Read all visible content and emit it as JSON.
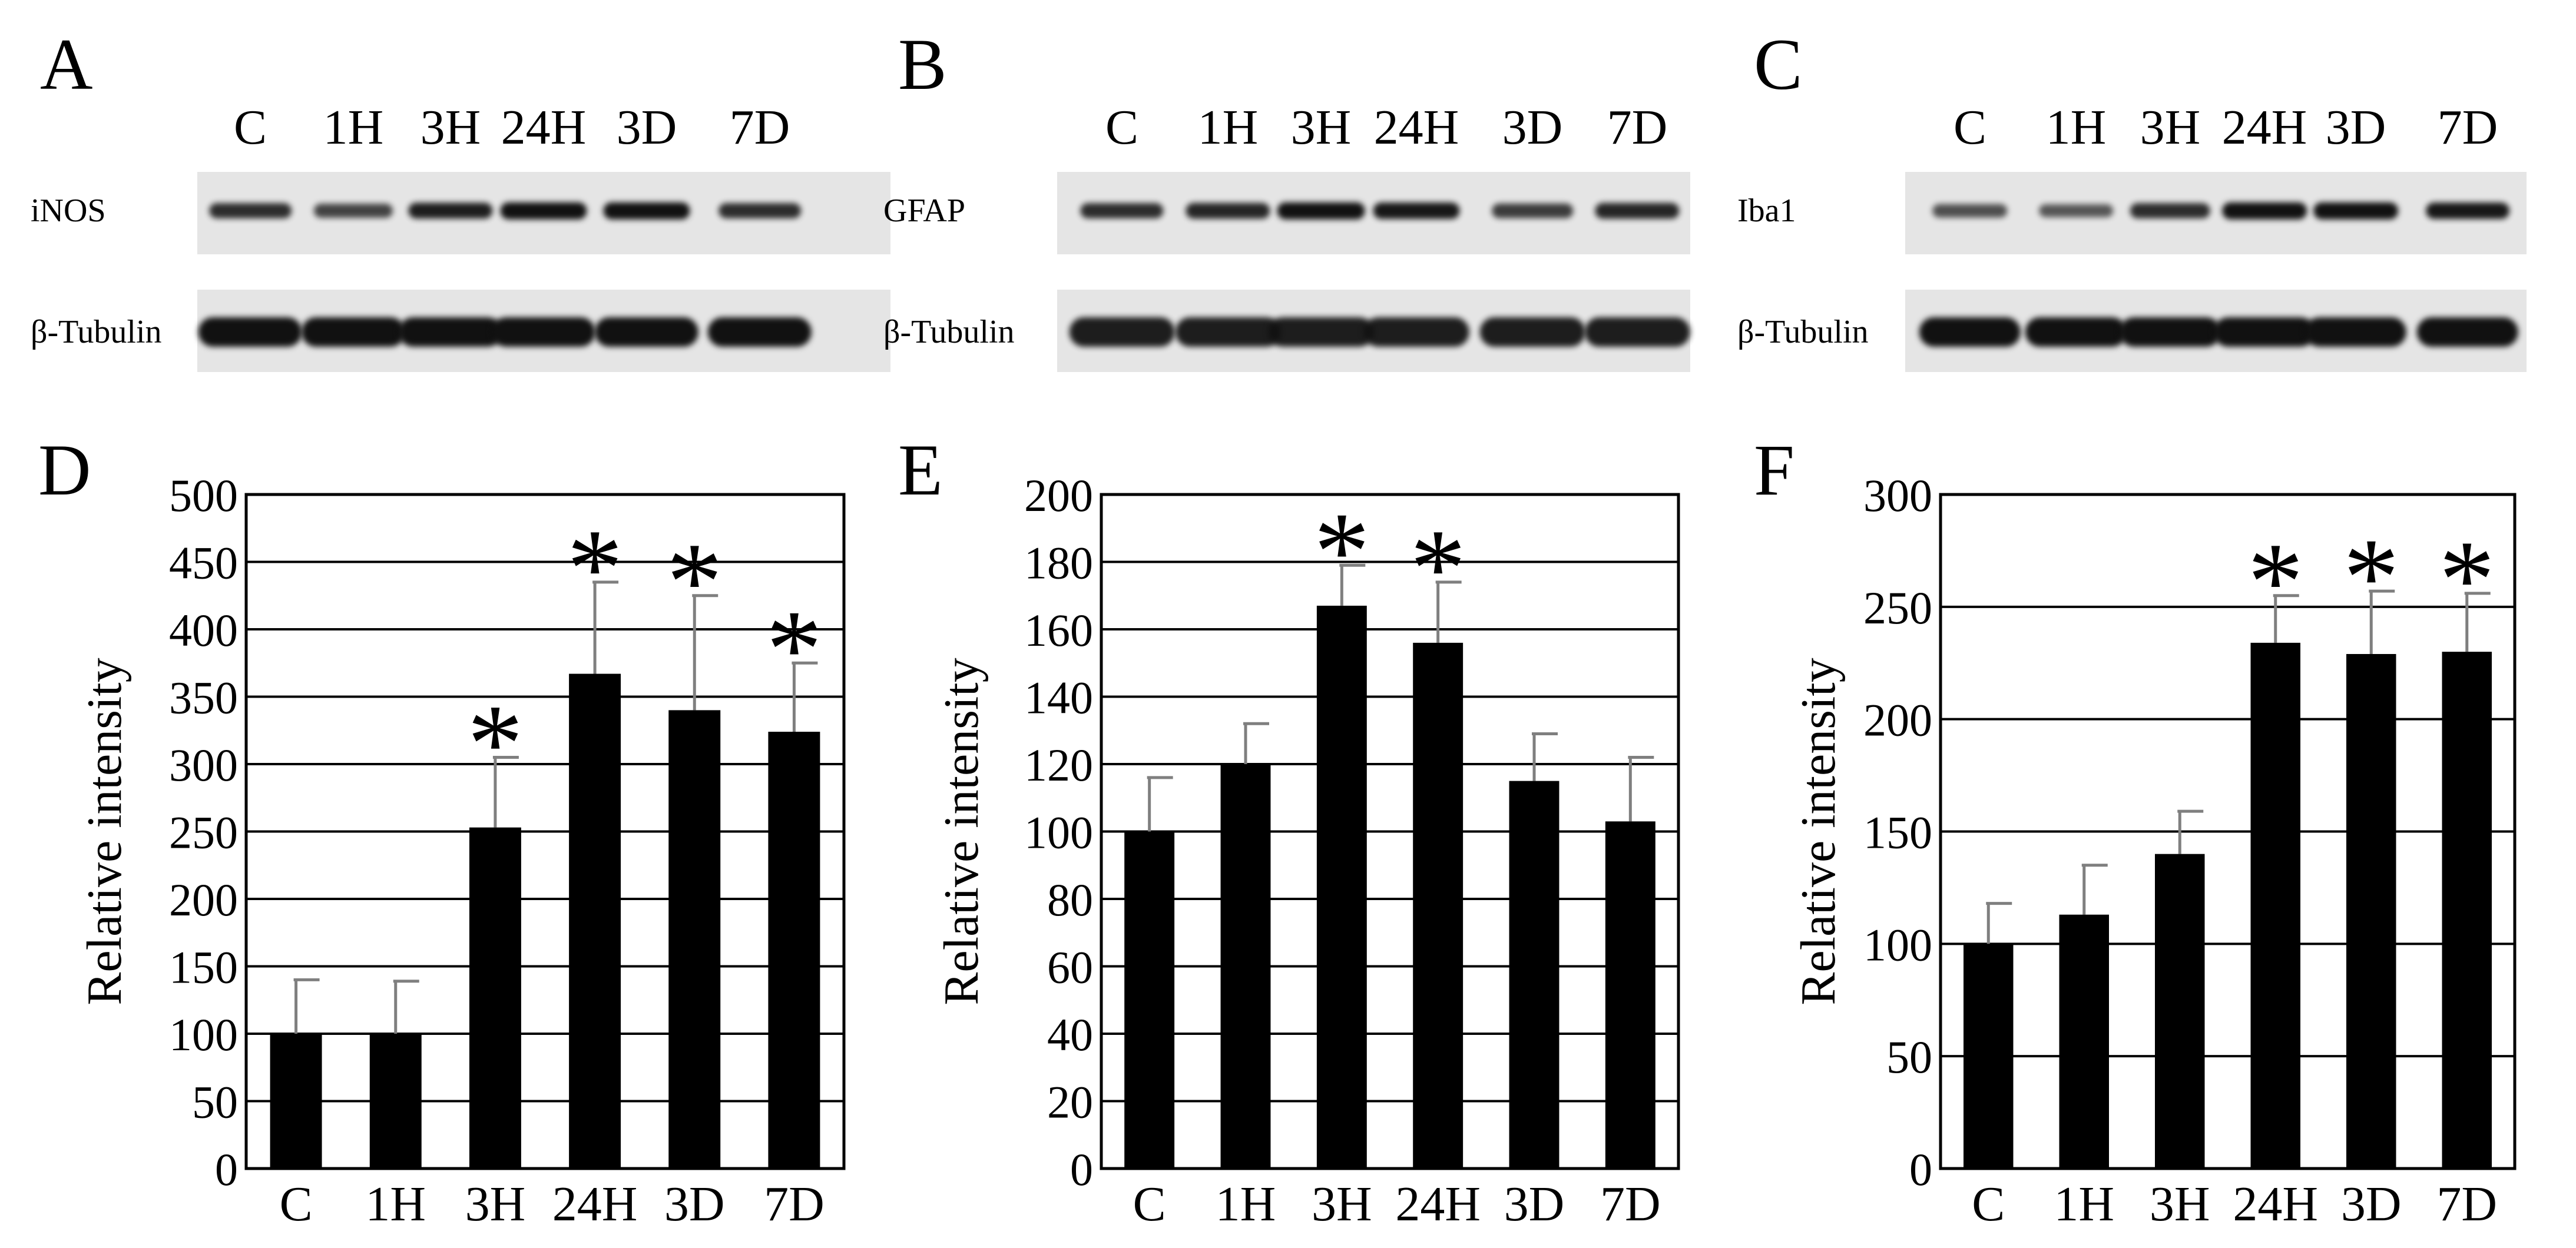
{
  "lanes": [
    "C",
    "1H",
    "3H",
    "24H",
    "3D",
    "7D"
  ],
  "blots": [
    {
      "letter": "A",
      "protein": "iNOS",
      "loading": "β-Tubulin",
      "protein_band_intensity": [
        0.8,
        0.65,
        0.9,
        1.0,
        1.0,
        0.8
      ],
      "loading_band_intensity": [
        1.0,
        1.0,
        1.0,
        1.0,
        1.0,
        1.0
      ]
    },
    {
      "letter": "B",
      "protein": "GFAP",
      "loading": "β-Tubulin",
      "protein_band_intensity": [
        0.8,
        0.85,
        1.0,
        0.95,
        0.7,
        0.85
      ],
      "loading_band_intensity": [
        0.9,
        0.9,
        0.9,
        0.9,
        0.9,
        0.9
      ]
    },
    {
      "letter": "C",
      "protein": "Iba1",
      "loading": "β-Tubulin",
      "protein_band_intensity": [
        0.55,
        0.5,
        0.8,
        1.0,
        1.0,
        0.95
      ],
      "loading_band_intensity": [
        1.0,
        1.0,
        1.0,
        1.0,
        1.0,
        1.0
      ]
    }
  ],
  "chart_data": [
    {
      "letter": "D",
      "type": "bar",
      "ylabel": "Relative intensity",
      "xlabel": "",
      "categories": [
        "C",
        "1H",
        "3H",
        "24H",
        "3D",
        "7D"
      ],
      "values": [
        100,
        100,
        253,
        367,
        340,
        324
      ],
      "errors": [
        40,
        39,
        52,
        68,
        85,
        51
      ],
      "significant": [
        false,
        false,
        true,
        true,
        true,
        true
      ],
      "ylim": [
        0,
        500
      ],
      "yticks": [
        0,
        50,
        100,
        150,
        200,
        250,
        300,
        350,
        400,
        450,
        500
      ],
      "grid": true,
      "bar_color": "#000000"
    },
    {
      "letter": "E",
      "type": "bar",
      "ylabel": "Relative intensity",
      "xlabel": "",
      "categories": [
        "C",
        "1H",
        "3H",
        "24H",
        "3D",
        "7D"
      ],
      "values": [
        100,
        120,
        167,
        156,
        115,
        103
      ],
      "errors": [
        16,
        12,
        12,
        18,
        14,
        19
      ],
      "significant": [
        false,
        false,
        true,
        true,
        false,
        false
      ],
      "ylim": [
        0,
        200
      ],
      "yticks": [
        0,
        20,
        40,
        60,
        80,
        100,
        120,
        140,
        160,
        180,
        200
      ],
      "grid": true,
      "bar_color": "#000000"
    },
    {
      "letter": "F",
      "type": "bar",
      "ylabel": "Relative intensity",
      "xlabel": "",
      "categories": [
        "C",
        "1H",
        "3H",
        "24H",
        "3D",
        "7D"
      ],
      "values": [
        100,
        113,
        140,
        234,
        229,
        230
      ],
      "errors": [
        18,
        22,
        19,
        21,
        28,
        26
      ],
      "significant": [
        false,
        false,
        false,
        true,
        true,
        true
      ],
      "ylim": [
        0,
        300
      ],
      "yticks": [
        0,
        50,
        100,
        150,
        200,
        250,
        300
      ],
      "grid": true,
      "bar_color": "#000000"
    }
  ],
  "significance_marker": "*"
}
